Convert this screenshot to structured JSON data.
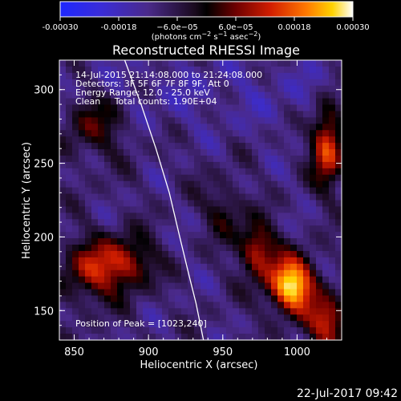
{
  "chart_data": {
    "type": "heatmap",
    "title": "Reconstructed RHESSI Image",
    "xlabel": "Heliocentric X (arcsec)",
    "ylabel": "Heliocentric Y (arcsec)",
    "xlim": [
      840,
      1030
    ],
    "ylim": [
      130,
      320
    ],
    "xticks": [
      850,
      900,
      950,
      1000
    ],
    "yticks": [
      150,
      200,
      250,
      300
    ],
    "xtick_labels": [
      "850",
      "900",
      "950",
      "1000"
    ],
    "ytick_labels": [
      "150",
      "200",
      "250",
      "300"
    ],
    "colormap": "red-temperature (blue-purple-black-red-orange-yellow-white)",
    "colorbar": {
      "range": [
        -0.0003,
        0.0003
      ],
      "ticks": [
        -0.0003,
        -0.00018,
        -6e-05,
        6e-05,
        0.00018,
        0.0003
      ],
      "tick_labels": [
        "-0.00030",
        "-0.00018",
        "−6.0e−05",
        "6.0e−05",
        "0.00018",
        "0.00030"
      ],
      "unit_parts": [
        "(photons cm",
        "−2",
        " s",
        "−1",
        " asec",
        "−2",
        ")"
      ]
    },
    "info_lines": [
      "14-Jul-2015 21:14:08.000 to 21:24:08.000",
      "Detectors: 3F 5F 6F 7F 8F 9F, Att 0",
      "Energy Range: 12.0 - 25.0 keV",
      "Clean     Total counts: 1.90E+04"
    ],
    "peak_label": "Position of Peak = [1023,240]",
    "peak_position": [
      1023,
      240
    ],
    "limb_curve": [
      [
        884,
        320
      ],
      [
        895,
        290
      ],
      [
        905,
        260
      ],
      [
        914,
        230
      ],
      [
        921,
        200
      ],
      [
        927,
        175
      ],
      [
        932,
        155
      ],
      [
        937,
        130
      ]
    ],
    "grid": false,
    "legend": "none"
  },
  "timestamp": "22-Jul-2017 09:42"
}
